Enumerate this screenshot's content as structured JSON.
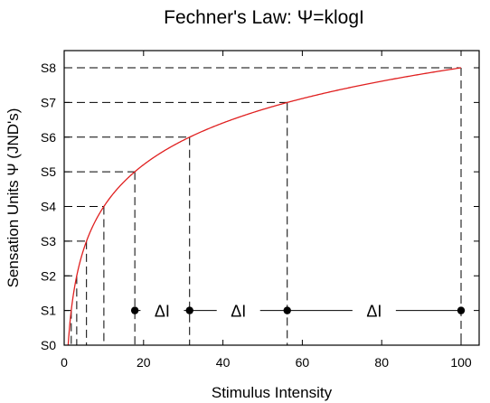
{
  "chart_data": {
    "type": "line",
    "title": "Fechner's Law:  Ψ=klogI",
    "xlabel": "Stimulus Intensity",
    "ylabel": "Sensation Units Ψ (JND's)",
    "xlim": [
      0,
      100
    ],
    "ylim": [
      0,
      8
    ],
    "x_ticks": [
      0,
      20,
      40,
      60,
      80,
      100
    ],
    "y_ticks": [
      {
        "value": 0,
        "label": "S0"
      },
      {
        "value": 1,
        "label": "S1"
      },
      {
        "value": 2,
        "label": "S2"
      },
      {
        "value": 3,
        "label": "S3"
      },
      {
        "value": 4,
        "label": "S4"
      },
      {
        "value": 5,
        "label": "S5"
      },
      {
        "value": 6,
        "label": "S6"
      },
      {
        "value": 7,
        "label": "S7"
      },
      {
        "value": 8,
        "label": "S8"
      }
    ],
    "curve": {
      "function": "psi = 4 * log10(I)",
      "color": "#e02020"
    },
    "reference_points": [
      {
        "x": 1.78,
        "y": 1
      },
      {
        "x": 3.16,
        "y": 2
      },
      {
        "x": 5.62,
        "y": 3
      },
      {
        "x": 10,
        "y": 4
      },
      {
        "x": 17.8,
        "y": 5
      },
      {
        "x": 31.6,
        "y": 6
      },
      {
        "x": 56.2,
        "y": 7
      },
      {
        "x": 100,
        "y": 8
      }
    ],
    "delta_spans": [
      {
        "from": 17.8,
        "to": 31.6,
        "y": 1,
        "label": "ΔI"
      },
      {
        "from": 31.6,
        "to": 56.2,
        "y": 1,
        "label": "ΔI"
      },
      {
        "from": 56.2,
        "to": 100,
        "y": 1,
        "label": "ΔI"
      }
    ],
    "grid": false,
    "legend": "none"
  }
}
